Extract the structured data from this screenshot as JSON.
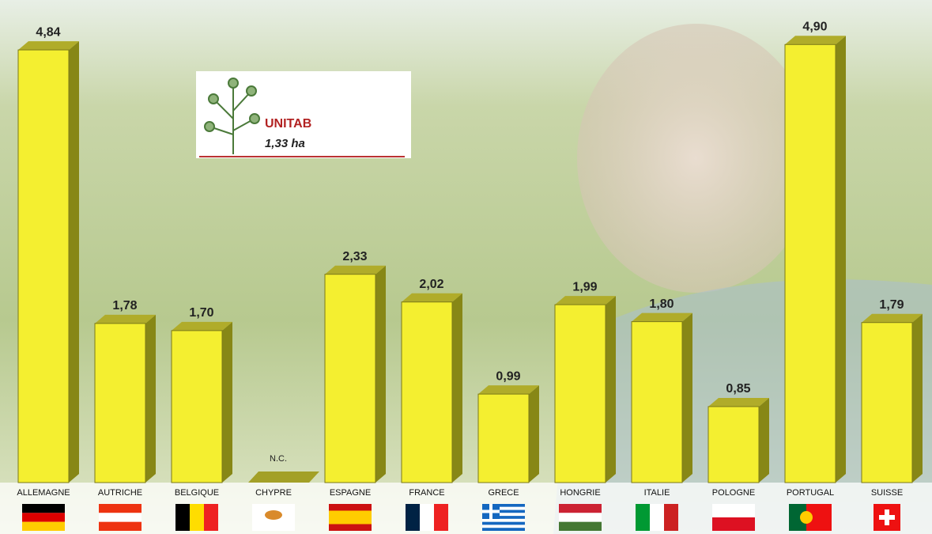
{
  "chart_data": {
    "type": "bar3d",
    "categories": [
      "ALLEMAGNE",
      "AUTRICHE",
      "BELGIQUE",
      "CHYPRE",
      "ESPAGNE",
      "FRANCE",
      "GRECE",
      "HONGRIE",
      "ITALIE",
      "POLOGNE",
      "PORTUGAL",
      "SUISSE"
    ],
    "values": [
      4.84,
      1.78,
      1.7,
      null,
      2.33,
      2.02,
      0.99,
      1.99,
      1.8,
      0.85,
      4.9,
      1.79
    ],
    "value_labels": [
      "4,84",
      "1,78",
      "1,70",
      "N.C.",
      "2,33",
      "2,02",
      "0,99",
      "1,99",
      "1,80",
      "0,85",
      "4,90",
      "1,79"
    ],
    "color": "#f4ef30",
    "annotation_title": "UNITAB",
    "annotation": "1,33 ha"
  }
}
